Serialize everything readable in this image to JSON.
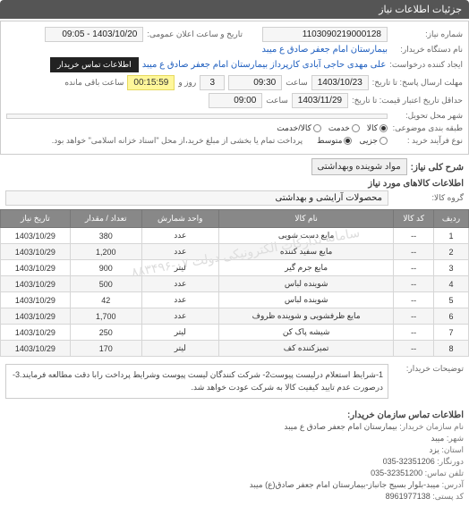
{
  "panel": {
    "title": "جزئیات اطلاعات نیاز"
  },
  "fields": {
    "need_no_label": "شماره نیاز:",
    "need_no": "1103090219000128",
    "announce_label": "تاریخ و ساعت اعلان عمومی:",
    "announce_value": "1403/10/20 - 09:05",
    "buyer_org_label": "نام دستگاه خریدار:",
    "buyer_org": "بیمارستان امام جعفر صادق ع  میبد",
    "creator_label": "ایجاد کننده درخواست:",
    "creator": "علی مهدی حاجی آبادی کارپرداز بیمارستان امام جعفر صادق ع  میبد",
    "contact_btn": "اطلاعات تماس خریدار",
    "reply_deadline_label": "مهلت ارسال پاسخ: تا تاریخ:",
    "reply_date": "1403/10/23",
    "reply_time_label": "ساعت",
    "reply_time": "09:30",
    "remain_days_label": "روز و",
    "remain_days": "3",
    "remain_time": "00:15:59",
    "remain_suffix": "ساعت باقی مانده",
    "price_valid_label": "حداقل تاریخ اعتبار قیمت: تا تاریخ:",
    "price_valid_date": "1403/11/29",
    "price_valid_time": "09:00",
    "city_label": "شهر محل تحویل:",
    "classify_label": "طبقه بندی موضوعی:",
    "buy_type_label": "نوع فرآیند خرید :",
    "pay_note": "پرداخت تمام یا بخشی از مبلغ خرید،از محل \"اسناد خزانه اسلامی\" خواهد بود."
  },
  "radios": {
    "classify": [
      {
        "label": "کالا",
        "selected": true
      },
      {
        "label": "خدمت",
        "selected": false
      },
      {
        "label": "کالا/خدمت",
        "selected": false
      }
    ],
    "buy_type": [
      {
        "label": "جزیی",
        "selected": false
      },
      {
        "label": "متوسط",
        "selected": true
      }
    ]
  },
  "sections": {
    "need_title_label": "شرح کلی نیاز:",
    "need_title": "مواد شوینده وبهداشتی",
    "goods_info_title": "اطلاعات کالاهای مورد نیاز",
    "group_label": "گروه کالا:",
    "group_value": "محصولات آرایشی و بهداشتی"
  },
  "table": {
    "headers": [
      "ردیف",
      "کد کالا",
      "نام کالا",
      "واحد شمارش",
      "تعداد / مقدار",
      "تاریخ نیاز"
    ],
    "rows": [
      [
        "1",
        "--",
        "مایع دست شویی",
        "عدد",
        "380",
        "1403/10/29"
      ],
      [
        "2",
        "--",
        "مایع سفید کننده",
        "عدد",
        "1,200",
        "1403/10/29"
      ],
      [
        "3",
        "--",
        "مایع جرم گیر",
        "لیتر",
        "900",
        "1403/10/29"
      ],
      [
        "4",
        "--",
        "شوینده لباس",
        "عدد",
        "500",
        "1403/10/29"
      ],
      [
        "5",
        "--",
        "شوینده لباس",
        "عدد",
        "42",
        "1403/10/29"
      ],
      [
        "6",
        "--",
        "مایع ظرفشویی و شوینده ظروف",
        "عدد",
        "1,700",
        "1403/10/29"
      ],
      [
        "7",
        "--",
        "شیشه پاک کن",
        "لیتر",
        "250",
        "1403/10/29"
      ],
      [
        "8",
        "--",
        "تمیزکننده کف",
        "لیتر",
        "170",
        "1403/10/29"
      ]
    ]
  },
  "watermark_text": "سامانه تدارکات الکترونیکی دولت\n۰۷-۸۸۳۴۹۶",
  "notes": {
    "label": "توضیحات خریدار:",
    "text": "1-شرایط استعلام درلیست پیوست2- شرکت کنندگان لیست پیوست وشرایط پرداخت رابا دقت مطالعه فرمایند.3-درصورت عدم تایید کیفیت کالا به شرکت عودت خواهد شد."
  },
  "footer": {
    "title": "اطلاعات تماس سازمان خریدار:",
    "org_label": "نام سازمان خریدار:",
    "org": "بیمارستان امام جعفر صادق ع میبد",
    "city_label": "شهر:",
    "city": "میبد",
    "province_label": "استان:",
    "province": "یزد",
    "fax_label": "دورنگار:",
    "fax": "32351206-035",
    "phone_label": "تلفن تماس:",
    "phone": "32351200-035",
    "address_label": "آدرس:",
    "address": "میبد-بلوار بسیج جانباز-بیمارستان امام جعفر صادق(ع) میبد",
    "post_label": "کد پستی:",
    "post": "8961977138"
  }
}
